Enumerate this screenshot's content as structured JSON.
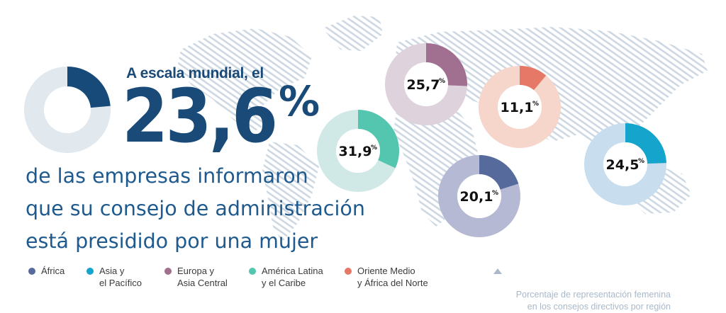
{
  "headline": {
    "intro": "A escala mundial, el",
    "value": "23,6",
    "unit": "%",
    "subtext": [
      "de las empresas informaron",
      "que su consejo de administración",
      "está presidido por una mujer"
    ]
  },
  "colors": {
    "main_fill": "#174a78",
    "main_track": "#e1e8ee",
    "map_hatch": "#ccd6e0",
    "label_text": "#111111"
  },
  "chart_data": {
    "type": "pie",
    "unit": "%",
    "main": {
      "value": 23.6
    },
    "series": [
      {
        "name": "África",
        "label": "20,1",
        "value": 20.1,
        "color": "#566a9c",
        "track": "#b6b9d3"
      },
      {
        "name": "Asia y\nel Pacífico",
        "label": "24,5",
        "value": 24.5,
        "color": "#15a4cc",
        "track": "#c8deef"
      },
      {
        "name": "Europa y\nAsia Central",
        "label": "25,7",
        "value": 25.7,
        "color": "#a16f90",
        "track": "#ded2dc"
      },
      {
        "name": "América Latina\ny el Caribe",
        "label": "31,9",
        "value": 31.9,
        "color": "#54c6b0",
        "track": "#d1e9e6"
      },
      {
        "name": "Oriente Medio\ny África del Norte",
        "label": "11,1",
        "value": 11.1,
        "color": "#e57866",
        "track": "#f6d5cb"
      }
    ]
  },
  "note": {
    "text": "Porcentaje de representación femenina\nen los consejos directivos por región",
    "icon": "triangle-up-icon"
  }
}
